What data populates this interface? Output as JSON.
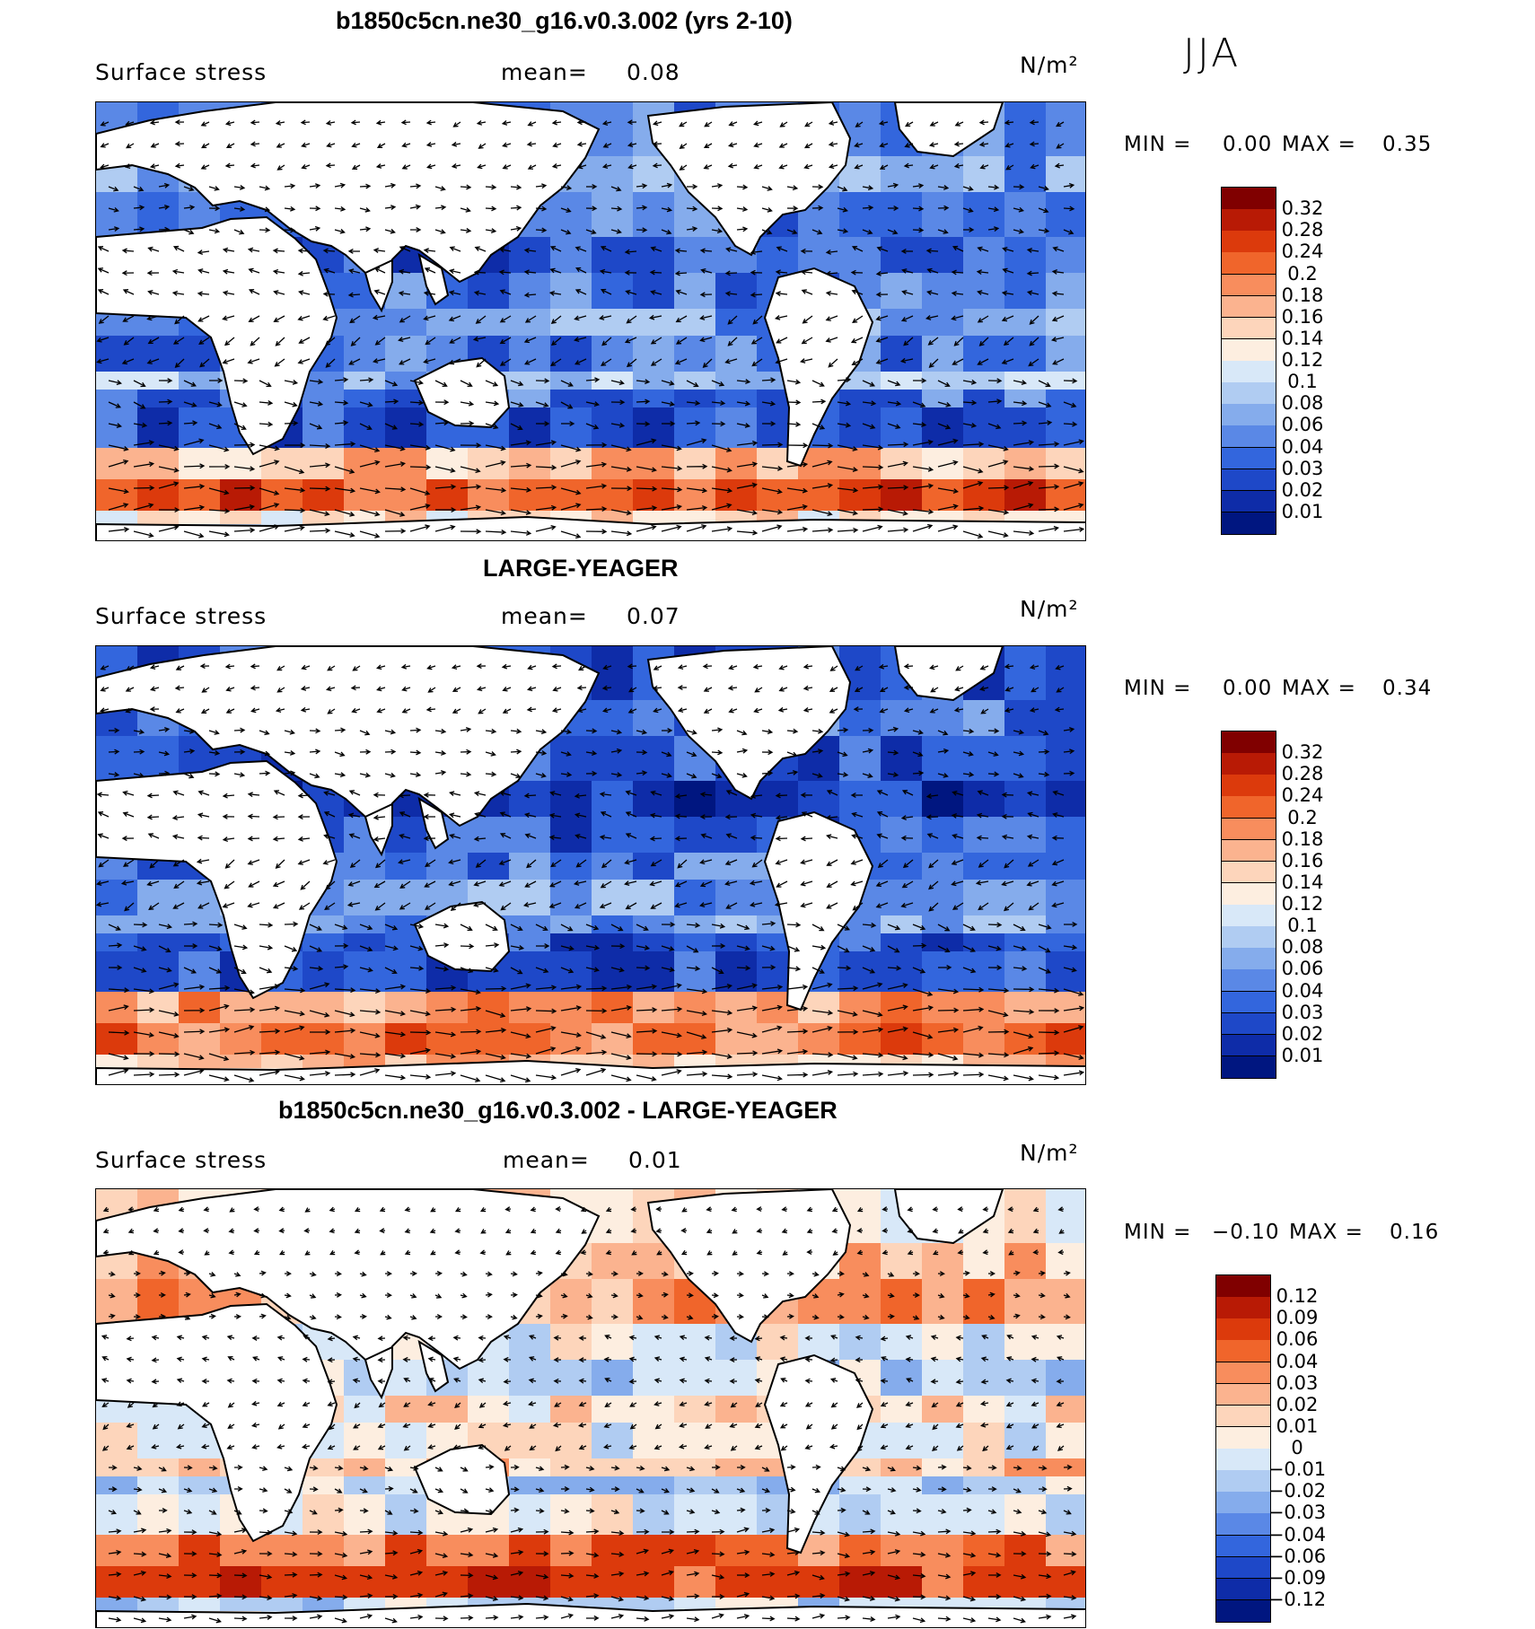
{
  "season": "JJA",
  "panels": [
    {
      "title": "b1850c5cn.ne30_g16.v0.3.002 (yrs 2-10)",
      "variable": "Surface stress",
      "mean_label": "mean=",
      "mean_value": "0.08",
      "units": "N/m²",
      "min_label": "MIN =",
      "min_value": "0.00",
      "max_label": "MAX =",
      "max_value": "0.35",
      "colorbar_labels": [
        "0.32",
        "0.28",
        "0.24",
        "0.2",
        "0.18",
        "0.16",
        "0.14",
        "0.12",
        "0.1",
        "0.08",
        "0.06",
        "0.04",
        "0.03",
        "0.02",
        "0.01"
      ],
      "colorbar_colors": [
        "#800000",
        "#b81a05",
        "#dc3a0c",
        "#f0652b",
        "#f88d5d",
        "#fbb38f",
        "#fdd5bb",
        "#fdeee0",
        "#d8e8f8",
        "#b0ccf2",
        "#85acec",
        "#5a88e6",
        "#3366dd",
        "#1e48c8",
        "#0e2ca8",
        "#001680"
      ]
    },
    {
      "title": "LARGE-YEAGER",
      "variable": "Surface stress",
      "mean_label": "mean=",
      "mean_value": "0.07",
      "units": "N/m²",
      "min_label": "MIN =",
      "min_value": "0.00",
      "max_label": "MAX =",
      "max_value": "0.34",
      "colorbar_labels": [
        "0.32",
        "0.28",
        "0.24",
        "0.2",
        "0.18",
        "0.16",
        "0.14",
        "0.12",
        "0.1",
        "0.08",
        "0.06",
        "0.04",
        "0.03",
        "0.02",
        "0.01"
      ],
      "colorbar_colors": [
        "#800000",
        "#b81a05",
        "#dc3a0c",
        "#f0652b",
        "#f88d5d",
        "#fbb38f",
        "#fdd5bb",
        "#fdeee0",
        "#d8e8f8",
        "#b0ccf2",
        "#85acec",
        "#5a88e6",
        "#3366dd",
        "#1e48c8",
        "#0e2ca8",
        "#001680"
      ]
    },
    {
      "title": "b1850c5cn.ne30_g16.v0.3.002 - LARGE-YEAGER",
      "variable": "Surface stress",
      "mean_label": "mean=",
      "mean_value": "0.01",
      "units": "N/m²",
      "min_label": "MIN =",
      "min_value": "−0.10",
      "max_label": "MAX =",
      "max_value": "0.16",
      "colorbar_labels": [
        "0.12",
        "0.09",
        "0.06",
        "0.04",
        "0.03",
        "0.02",
        "0.01",
        "0",
        "−0.01",
        "−0.02",
        "−0.03",
        "−0.04",
        "−0.06",
        "−0.09",
        "−0.12"
      ],
      "colorbar_colors": [
        "#800000",
        "#b81a05",
        "#dc3a0c",
        "#f0652b",
        "#f88d5d",
        "#fbb38f",
        "#fdd5bb",
        "#fdeee0",
        "#d8e8f8",
        "#b0ccf2",
        "#85acec",
        "#5a88e6",
        "#3366dd",
        "#1e48c8",
        "#0e2ca8",
        "#001680"
      ]
    }
  ]
}
